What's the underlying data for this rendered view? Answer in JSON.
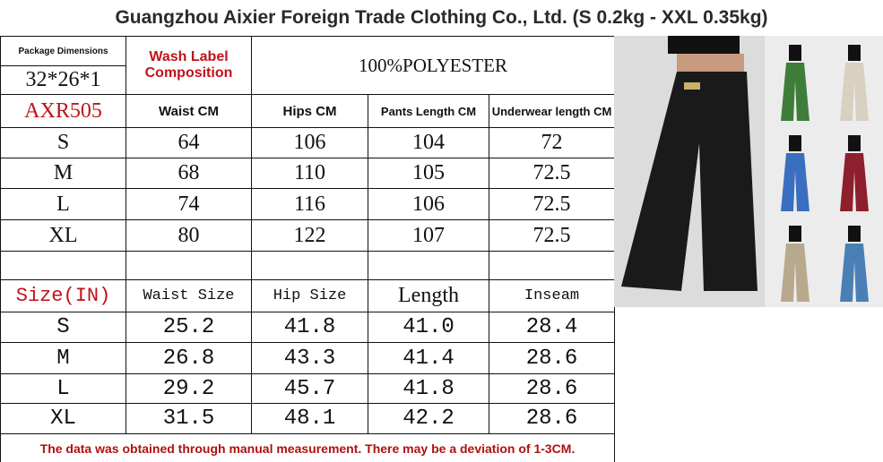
{
  "title": "Guangzhou Aixier Foreign Trade Clothing Co., Ltd. (S 0.2kg - XXL 0.35kg)",
  "package": {
    "label": "Package Dimensions",
    "value": "32*26*1"
  },
  "wash_label": "Wash Label Composition",
  "composition": "100%POLYESTER",
  "style_code": "AXR505",
  "cm_table": {
    "headers": [
      "Waist CM",
      "Hips CM",
      "Pants Length CM",
      "Underwear length CM"
    ],
    "rows": [
      [
        "S",
        "64",
        "106",
        "104",
        "72"
      ],
      [
        "M",
        "68",
        "110",
        "105",
        "72.5"
      ],
      [
        "L",
        "74",
        "116",
        "106",
        "72.5"
      ],
      [
        "XL",
        "80",
        "122",
        "107",
        "72.5"
      ]
    ]
  },
  "in_table": {
    "size_label": "Size(IN)",
    "headers": [
      "Waist Size",
      "Hip Size",
      "Length",
      "Inseam"
    ],
    "rows": [
      [
        "S",
        "25.2",
        "41.8",
        "41.0",
        "28.4"
      ],
      [
        "M",
        "26.8",
        "43.3",
        "41.4",
        "28.6"
      ],
      [
        "L",
        "29.2",
        "45.7",
        "41.8",
        "28.6"
      ],
      [
        "XL",
        "31.5",
        "48.1",
        "42.2",
        "28.6"
      ]
    ]
  },
  "note": "The data was obtained through manual measurement.  There may be a deviation of 1-3CM.",
  "product_colors": [
    "#1a1a1a",
    "#3e7d3a",
    "#d8d0c0",
    "#3a6fc0",
    "#8e1f2c",
    "#b8a88c",
    "#4a7fb5"
  ]
}
